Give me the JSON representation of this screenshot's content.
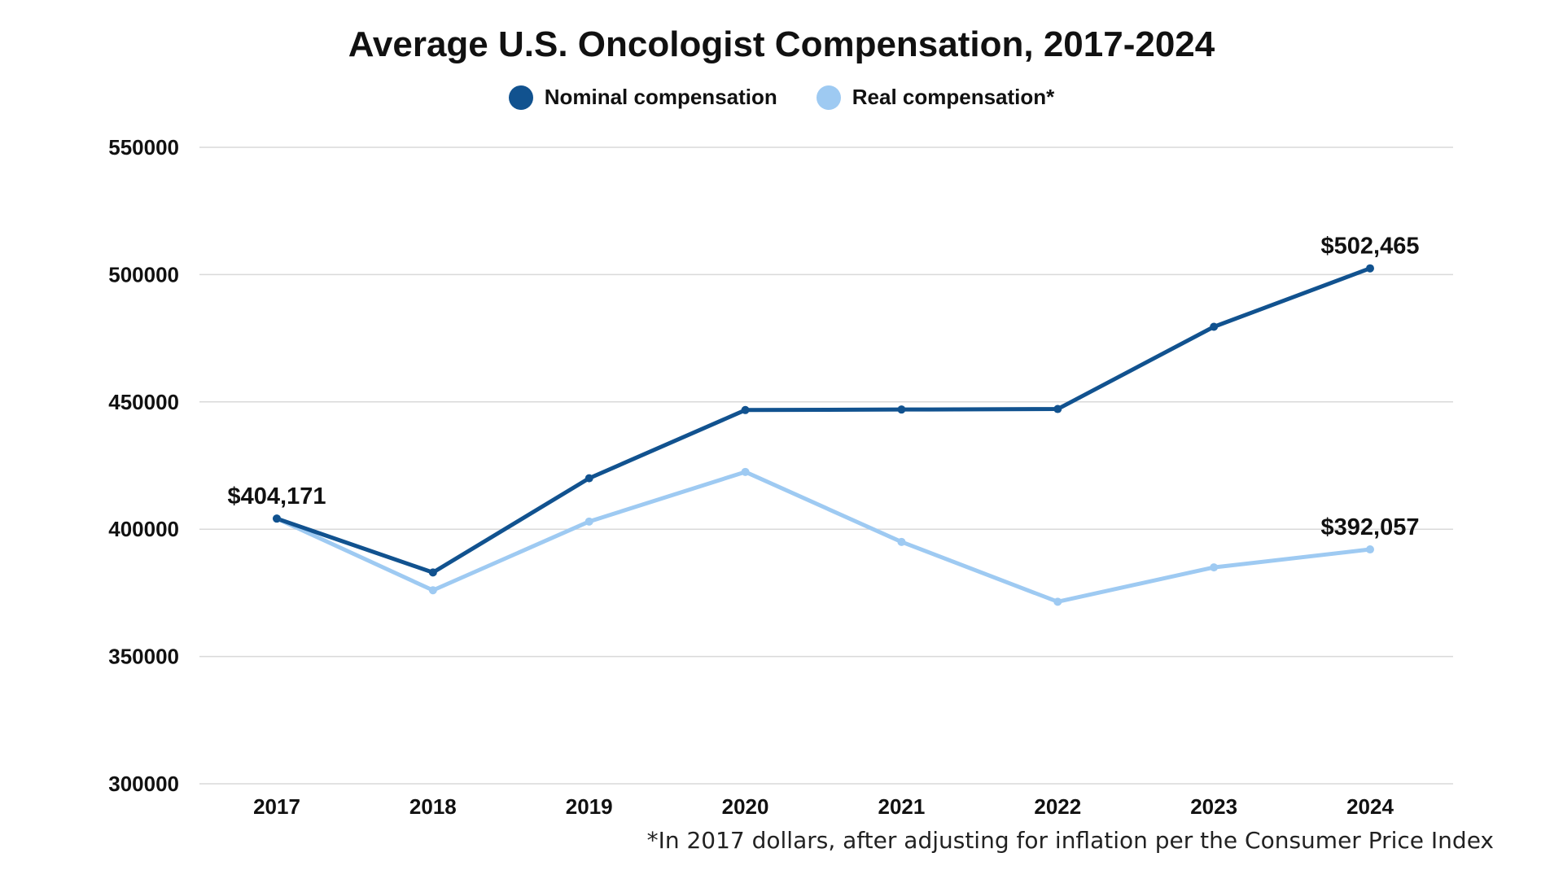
{
  "chart_data": {
    "type": "line",
    "title": "Average U.S. Oncologist Compensation, 2017-2024",
    "categories": [
      "2017",
      "2018",
      "2019",
      "2020",
      "2021",
      "2022",
      "2023",
      "2024"
    ],
    "y_ticks": [
      "300000",
      "350000",
      "400000",
      "450000",
      "500000",
      "550000"
    ],
    "ylim": [
      300000,
      550000
    ],
    "grid": true,
    "legend_position": "top-center",
    "series": [
      {
        "name": "Nominal compensation",
        "color": "#11528f",
        "values": [
          404171,
          383000,
          420000,
          446800,
          447000,
          447200,
          479500,
          502465
        ]
      },
      {
        "name": "Real compensation*",
        "color": "#9ecaf2",
        "values": [
          404171,
          376000,
          403000,
          422500,
          395000,
          371500,
          385000,
          392057
        ]
      }
    ],
    "annotations": [
      {
        "text": "$404,171",
        "series": 0,
        "index": 0
      },
      {
        "text": "$502,465",
        "series": 0,
        "index": 7
      },
      {
        "text": "$392,057",
        "series": 1,
        "index": 7
      }
    ],
    "footnote": "*In 2017 dollars, after adjusting for inflation per the Consumer Price Index"
  }
}
